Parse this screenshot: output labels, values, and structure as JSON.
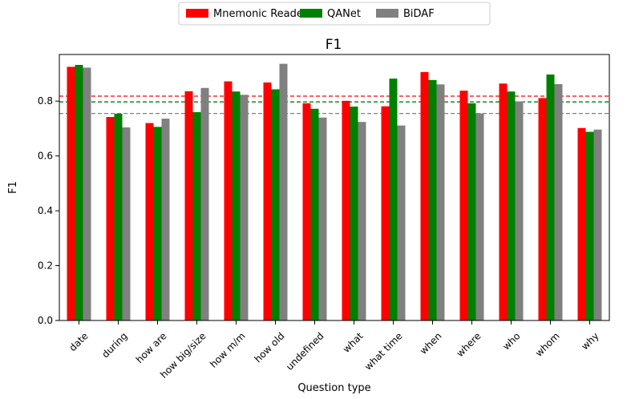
{
  "chart_data": {
    "type": "bar",
    "title": "F1",
    "xlabel": "Question type",
    "ylabel": "F1",
    "ylim": [
      0,
      0.97
    ],
    "yticks": [
      0.0,
      0.2,
      0.4,
      0.6,
      0.8
    ],
    "ytick_labels": [
      "0.0",
      "0.2",
      "0.4",
      "0.6",
      "0.8"
    ],
    "grid": false,
    "legend_position": "top-center-outside",
    "categories": [
      "date",
      "during",
      "how are",
      "how big/size",
      "how m/m",
      "how old",
      "undefined",
      "what",
      "what time",
      "when",
      "where",
      "who",
      "whom",
      "why"
    ],
    "series": [
      {
        "name": "Mnemonic Reader",
        "color": "#ff0000",
        "values": [
          0.925,
          0.742,
          0.72,
          0.836,
          0.872,
          0.868,
          0.792,
          0.801,
          0.781,
          0.906,
          0.838,
          0.864,
          0.811,
          0.702
        ]
      },
      {
        "name": "QANet",
        "color": "#008000",
        "values": [
          0.932,
          0.754,
          0.706,
          0.76,
          0.835,
          0.843,
          0.772,
          0.78,
          0.882,
          0.877,
          0.792,
          0.835,
          0.897,
          0.688
        ]
      },
      {
        "name": "BiDAF",
        "color": "#808080",
        "values": [
          0.922,
          0.704,
          0.736,
          0.848,
          0.823,
          0.936,
          0.74,
          0.724,
          0.711,
          0.861,
          0.755,
          0.799,
          0.862,
          0.696
        ]
      }
    ],
    "reference_lines": [
      {
        "series": "Mnemonic Reader",
        "value": 0.818,
        "color": "#ff0000",
        "style": "dashed"
      },
      {
        "series": "QANet",
        "value": 0.797,
        "color": "#008000",
        "style": "dashed"
      },
      {
        "series": "BiDAF",
        "value": 0.755,
        "color": "#808080",
        "style": "dashed"
      }
    ]
  }
}
